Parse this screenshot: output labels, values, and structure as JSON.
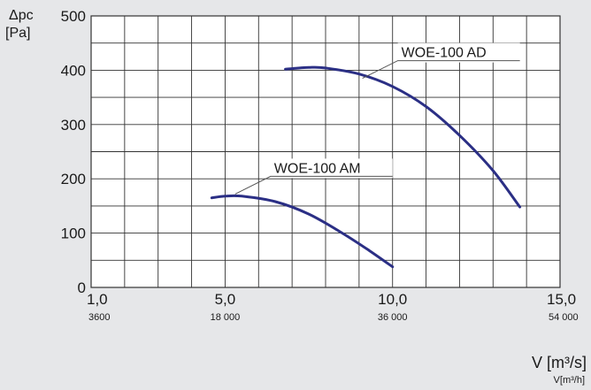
{
  "chart_data": {
    "type": "line",
    "ylabel_line1": "Δpc",
    "ylabel_line2": "[Pa]",
    "xlabel_main": "V [m³/s]",
    "xlabel_sub": "V[m³/h]",
    "xlim": [
      1.0,
      15.0
    ],
    "ylim": [
      0,
      500
    ],
    "grid": true,
    "y_ticks": [
      "0",
      "100",
      "200",
      "300",
      "400",
      "500"
    ],
    "x_ticks": [
      {
        "value": 1.0,
        "label": "1,0",
        "sub": "3600"
      },
      {
        "value": 5.0,
        "label": "5,0",
        "sub": "18 000"
      },
      {
        "value": 10.0,
        "label": "10,0",
        "sub": "36 000"
      },
      {
        "value": 15.0,
        "label": "15,0",
        "sub": "54 000"
      }
    ],
    "series": [
      {
        "name": "WOE-100 AM",
        "color": "#2b2f85",
        "points": [
          [
            4.6,
            165
          ],
          [
            5.0,
            168
          ],
          [
            5.5,
            168
          ],
          [
            6.5,
            158
          ],
          [
            7.5,
            135
          ],
          [
            8.5,
            100
          ],
          [
            9.3,
            68
          ],
          [
            10.0,
            38
          ]
        ],
        "label_anchor": [
          5.3,
          172
        ]
      },
      {
        "name": "WOE-100 AD",
        "color": "#2b2f85",
        "points": [
          [
            6.8,
            402
          ],
          [
            7.5,
            405
          ],
          [
            8.0,
            404
          ],
          [
            9.0,
            393
          ],
          [
            10.0,
            370
          ],
          [
            11.0,
            333
          ],
          [
            12.0,
            280
          ],
          [
            13.0,
            215
          ],
          [
            13.8,
            148
          ]
        ],
        "label_anchor": [
          9.1,
          385
        ]
      }
    ]
  }
}
